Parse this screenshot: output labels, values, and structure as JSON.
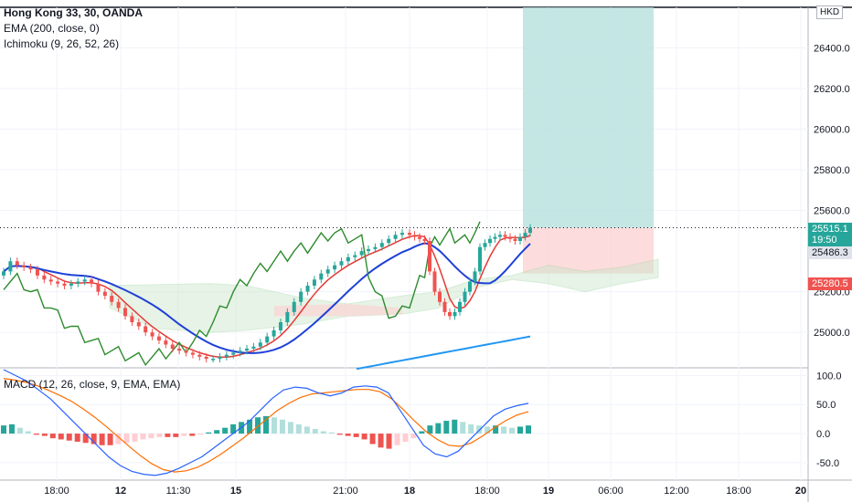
{
  "legend": {
    "symbol": "Hong Kong 33, 30, OANDA",
    "ema": "EMA (200, close, 0)",
    "ichimoku": "Ichimoku (9, 26, 52, 26)",
    "macd": "MACD (12, 26, close, 9, EMA, EMA)"
  },
  "currency": "HKD",
  "price_labels": {
    "last": "25515.1",
    "countdown": "19:50",
    "target": "25486.3",
    "stop": "25280.5"
  },
  "colors": {
    "up": "#26a69a",
    "down": "#ef5350",
    "tenkan": "#e53935",
    "kijun": "#1e40d8",
    "chikou": "#2e8b2e",
    "ema": "#2196f3",
    "macd": "#2962ff",
    "signal": "#ff6d00",
    "profit_zone": "#b2dfdb",
    "loss_zone": "#fbd3d3"
  },
  "chart_data": [
    {
      "type": "line",
      "title": "Hong Kong 33, 30, OANDA",
      "y_ticks": [
        "26400.0",
        "26200.0",
        "26000.0",
        "25800.0",
        "25600.0",
        "25200.0",
        "25000.0"
      ],
      "ylim": [
        24830,
        26600
      ],
      "x_ticks": [
        "18:00",
        "12",
        "11:30",
        "15",
        "21:00",
        "18",
        "18:00",
        "19",
        "06:00",
        "12:00",
        "18:00",
        "20"
      ],
      "candles_close": [
        25300,
        25350,
        25330,
        25320,
        25310,
        25280,
        25260,
        25250,
        25240,
        25230,
        25240,
        25250,
        25260,
        25240,
        25200,
        25180,
        25150,
        25120,
        25080,
        25050,
        25030,
        25000,
        24980,
        24960,
        24940,
        24920,
        24910,
        24900,
        24890,
        24880,
        24870,
        24870,
        24880,
        24890,
        24900,
        24910,
        24920,
        24930,
        24950,
        24980,
        25010,
        25050,
        25100,
        25150,
        25200,
        25230,
        25260,
        25290,
        25310,
        25330,
        25350,
        25370,
        25380,
        25400,
        25410,
        25420,
        25440,
        25460,
        25480,
        25490,
        25480,
        25470,
        25460,
        25450,
        25300,
        25200,
        25150,
        25100,
        25080,
        25100,
        25150,
        25200,
        25250,
        25300,
        25420,
        25440,
        25460,
        25470,
        25480,
        25470,
        25460,
        25450,
        25470,
        25490,
        25515
      ],
      "ema_200": [
        24820,
        24830,
        24840,
        24850,
        24860,
        24870,
        24880,
        24890,
        24900,
        24910,
        24920,
        24930,
        24940,
        24950,
        24960,
        24970,
        24980
      ],
      "macd_ticks": [
        "100.0",
        "50.0",
        "0.0",
        "-50.0"
      ],
      "macd_ylim": [
        -80,
        110
      ],
      "macd_hist": [
        14,
        16,
        10,
        4,
        -2,
        -4,
        -8,
        -10,
        -12,
        -14,
        -16,
        -18,
        -20,
        -20,
        -18,
        -16,
        -14,
        -10,
        -8,
        -6,
        -6,
        -6,
        -4,
        -4,
        -2,
        2,
        6,
        10,
        16,
        20,
        24,
        28,
        30,
        28,
        24,
        20,
        16,
        12,
        8,
        4,
        2,
        -2,
        -4,
        -6,
        -10,
        -18,
        -24,
        -26,
        -20,
        -14,
        -8,
        4,
        14,
        18,
        22,
        24,
        20,
        16,
        14,
        12,
        14,
        12,
        10,
        12,
        14
      ],
      "macd_line": [
        110,
        100,
        90,
        75,
        60,
        40,
        20,
        0,
        -20,
        -40,
        -55,
        -65,
        -70,
        -72,
        -68,
        -60,
        -50,
        -40,
        -25,
        -10,
        5,
        20,
        40,
        60,
        75,
        80,
        78,
        70,
        65,
        70,
        80,
        82,
        80,
        70,
        40,
        10,
        -20,
        -35,
        -40,
        -30,
        -10,
        10,
        30,
        42,
        48,
        52
      ],
      "signal_line": [
        95,
        92,
        88,
        82,
        74,
        65,
        55,
        42,
        28,
        12,
        -5,
        -22,
        -38,
        -52,
        -62,
        -66,
        -64,
        -58,
        -48,
        -36,
        -22,
        -8,
        8,
        24,
        40,
        52,
        62,
        68,
        70,
        72,
        74,
        76,
        76,
        72,
        60,
        42,
        22,
        4,
        -10,
        -20,
        -22,
        -16,
        -4,
        10,
        22,
        32,
        38
      ]
    }
  ]
}
